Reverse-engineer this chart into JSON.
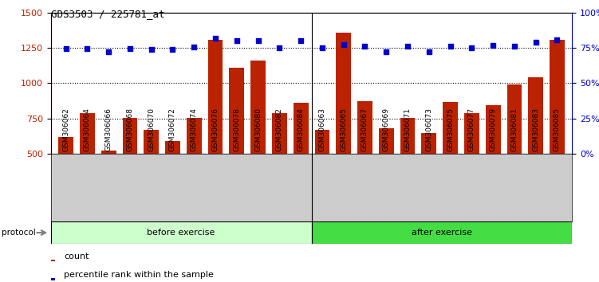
{
  "title": "GDS3503 / 225781_at",
  "categories": [
    "GSM306062",
    "GSM306064",
    "GSM306066",
    "GSM306068",
    "GSM306070",
    "GSM306072",
    "GSM306074",
    "GSM306076",
    "GSM306078",
    "GSM306080",
    "GSM306082",
    "GSM306084",
    "GSM306063",
    "GSM306065",
    "GSM306067",
    "GSM306069",
    "GSM306071",
    "GSM306073",
    "GSM306075",
    "GSM306077",
    "GSM306079",
    "GSM306081",
    "GSM306083",
    "GSM306085"
  ],
  "counts": [
    620,
    790,
    520,
    755,
    670,
    590,
    755,
    1310,
    1110,
    1160,
    790,
    860,
    670,
    1360,
    870,
    680,
    755,
    645,
    865,
    790,
    845,
    990,
    1040,
    1310
  ],
  "percentile_values": [
    1245,
    1245,
    1220,
    1245,
    1240,
    1240,
    1255,
    1320,
    1300,
    1300,
    1250,
    1300,
    1250,
    1275,
    1265,
    1220,
    1260,
    1220,
    1265,
    1250,
    1270,
    1265,
    1290,
    1310
  ],
  "bar_color": "#BB2200",
  "dot_color": "#0000CC",
  "ylim_left": [
    500,
    1500
  ],
  "ylim_right": [
    0,
    100
  ],
  "yticks_left": [
    500,
    750,
    1000,
    1250,
    1500
  ],
  "yticks_right": [
    0,
    25,
    50,
    75,
    100
  ],
  "before_count": 12,
  "after_count": 12,
  "before_label": "before exercise",
  "after_label": "after exercise",
  "protocol_label": "protocol",
  "legend_count": "count",
  "legend_percentile": "percentile rank within the sample",
  "chart_bg": "#FFFFFF",
  "label_band_bg": "#CCCCCC",
  "before_color": "#CCFFCC",
  "after_color": "#44DD44",
  "dotted_lines": [
    750,
    1000,
    1250
  ],
  "separator_line": 11.5,
  "bar_bottom": 500
}
